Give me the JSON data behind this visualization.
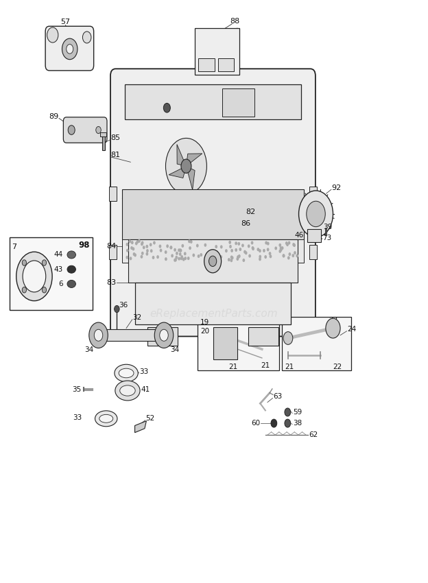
{
  "bg_color": "#ffffff",
  "watermark": "eReplacementParts.com",
  "watermark_color": "#cccccc"
}
